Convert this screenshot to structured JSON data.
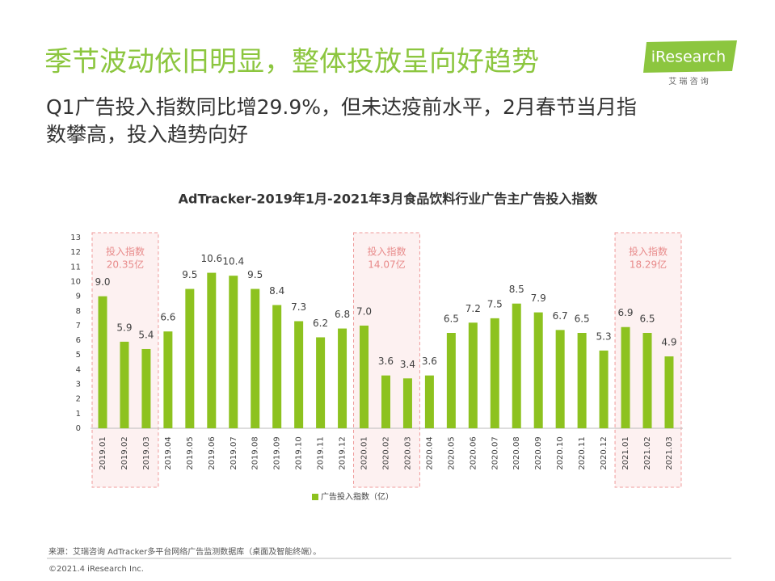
{
  "header": {
    "title": "季节波动依旧明显，整体投放呈向好趋势",
    "subtitle": [
      "Q1广告投入指数同比增29.9%，但未达疫前水平，2月春节当月指",
      "数攀高，投入趋势向好"
    ],
    "logo": "iResearch",
    "logo_sub": "艾 瑞 咨 询"
  },
  "chart_data": {
    "type": "bar",
    "title": "AdTracker-2019年1月-2021年3月食品饮料行业广告主广告投入指数",
    "categories": [
      "2019.01",
      "2019.02",
      "2019.03",
      "2019.04",
      "2019.05",
      "2019.06",
      "2019.07",
      "2019.08",
      "2019.09",
      "2019.10",
      "2019.11",
      "2019.12",
      "2020.01",
      "2020.02",
      "2020.03",
      "2020.04",
      "2020.05",
      "2020.06",
      "2020.07",
      "2020.08",
      "2020.09",
      "2020.10",
      "2020.11",
      "2020.12",
      "2021.01",
      "2021.02",
      "2021.03"
    ],
    "series": [
      {
        "name": "广告投入指数（亿）",
        "color": "#8dc21f",
        "values": [
          9.0,
          5.9,
          5.4,
          6.6,
          9.5,
          10.6,
          10.4,
          9.5,
          8.4,
          7.3,
          6.2,
          6.8,
          7.0,
          3.6,
          3.4,
          3.6,
          6.5,
          7.2,
          7.5,
          8.5,
          7.9,
          6.7,
          6.5,
          5.3,
          6.9,
          6.5,
          4.9
        ],
        "value_labels": [
          "9.0",
          "5.9",
          "5.4",
          "6.6",
          "9.5",
          "10.6",
          "10.4",
          "9.5",
          "8.4",
          "7.3",
          "6.2",
          "6.8",
          "7.0",
          "3.6",
          "3.4",
          "3.6",
          "6.5",
          "7.2",
          "7.5",
          "8.5",
          "7.9",
          "6.7",
          "6.5",
          "5.3",
          "6.9",
          "6.5",
          "4.9"
        ]
      }
    ],
    "ylim": [
      0,
      13
    ],
    "yticks": [
      0,
      1,
      2,
      3,
      4,
      5,
      6,
      7,
      8,
      9,
      10,
      11,
      12,
      13
    ],
    "annotations": [
      {
        "lines": [
          "投入指数",
          "20.35亿"
        ],
        "from": "2019.01",
        "to": "2019.03"
      },
      {
        "lines": [
          "投入指数",
          "14.07亿"
        ],
        "from": "2020.01",
        "to": "2020.03"
      },
      {
        "lines": [
          "投入指数",
          "18.29亿"
        ],
        "from": "2021.01",
        "to": "2021.03"
      }
    ]
  },
  "footer": {
    "source": "来源：艾瑞咨询 AdTracker多平台网络广告监测数据库（桌面及智能终端）。",
    "copyright": "©2021.4 iResearch Inc."
  }
}
